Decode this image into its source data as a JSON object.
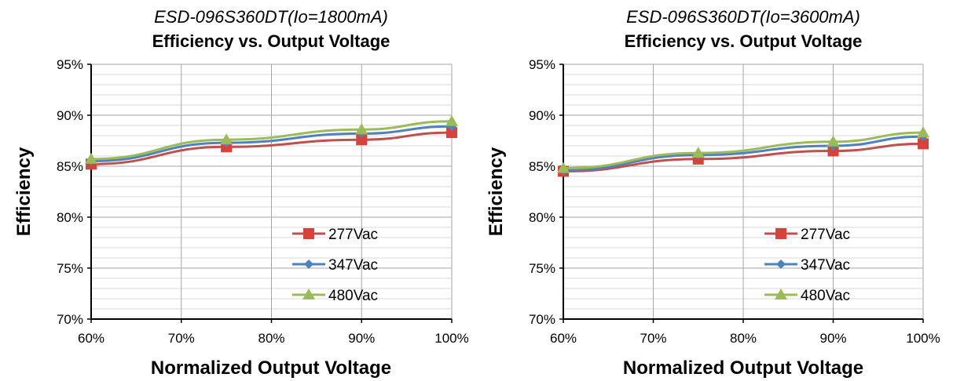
{
  "colors": {
    "277Vac": "#c0504d",
    "277Vac_marker": "#d9413b",
    "347Vac": "#4f81bd",
    "480Vac": "#9bbb59",
    "major_grid": "#a6a6a6",
    "minor_grid": "#d9d9d9"
  },
  "chart_data": [
    {
      "type": "line",
      "subtitle": "ESD-096S360DT(Io=1800mA)",
      "title": "Efficiency vs. Output Voltage",
      "xlabel": "Normalized Output Voltage",
      "ylabel": "Efficiency",
      "xlim": [
        60,
        100
      ],
      "ylim": [
        70,
        95
      ],
      "x_ticks": [
        "60%",
        "70%",
        "80%",
        "90%",
        "100%"
      ],
      "y_ticks": [
        "70%",
        "75%",
        "80%",
        "85%",
        "90%",
        "95%"
      ],
      "grid": true,
      "legend": "bottom-right",
      "x": [
        60,
        75,
        90,
        100
      ],
      "series": [
        {
          "name": "277Vac",
          "marker": "square",
          "values": [
            85.2,
            86.9,
            87.6,
            88.3
          ]
        },
        {
          "name": "347Vac",
          "marker": "diamond",
          "values": [
            85.5,
            87.3,
            88.2,
            88.9
          ]
        },
        {
          "name": "480Vac",
          "marker": "triangle",
          "values": [
            85.7,
            87.6,
            88.6,
            89.4
          ]
        }
      ]
    },
    {
      "type": "line",
      "subtitle": "ESD-096S360DT(Io=3600mA)",
      "title": "Efficiency vs. Output Voltage",
      "xlabel": "Normalized Output Voltage",
      "ylabel": "Efficiency",
      "xlim": [
        60,
        100
      ],
      "ylim": [
        70,
        95
      ],
      "x_ticks": [
        "60%",
        "70%",
        "80%",
        "90%",
        "100%"
      ],
      "y_ticks": [
        "70%",
        "75%",
        "80%",
        "85%",
        "90%",
        "95%"
      ],
      "grid": true,
      "legend": "bottom-right",
      "x": [
        60,
        75,
        90,
        100
      ],
      "series": [
        {
          "name": "277Vac",
          "marker": "square",
          "values": [
            84.5,
            85.7,
            86.5,
            87.2
          ]
        },
        {
          "name": "347Vac",
          "marker": "diamond",
          "values": [
            84.6,
            86.1,
            87.0,
            87.9
          ]
        },
        {
          "name": "480Vac",
          "marker": "triangle",
          "values": [
            84.8,
            86.3,
            87.4,
            88.3
          ]
        }
      ]
    }
  ]
}
